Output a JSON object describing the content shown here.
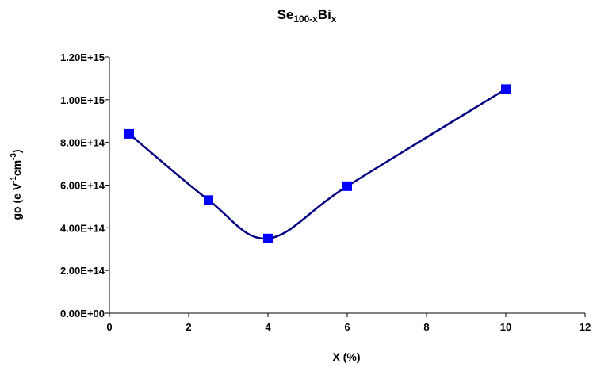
{
  "chart_data": {
    "type": "line",
    "title": [
      {
        "text": "Se"
      },
      {
        "text": "100-x",
        "shift": "sub"
      },
      {
        "text": "Bi"
      },
      {
        "text": "x",
        "shift": "sub"
      }
    ],
    "x_label": [
      {
        "text": "X (%)"
      }
    ],
    "y_label": [
      {
        "text": "go (e V"
      },
      {
        "text": "-1",
        "shift": "super"
      },
      {
        "text": "cm"
      },
      {
        "text": "-3",
        "shift": "super"
      },
      {
        "text": ")"
      }
    ],
    "x": [
      0.5,
      2.5,
      4,
      6,
      10
    ],
    "series": [
      {
        "color": "#000080",
        "marker_color": "#0000ff",
        "marker": "square",
        "smooth": true,
        "values": [
          840000000000000,
          530000000000000,
          350000000000000,
          595000000000000,
          1050000000000000
        ]
      }
    ],
    "xlim": [
      0,
      12
    ],
    "xticks": [
      0,
      2,
      4,
      6,
      8,
      10,
      12
    ],
    "ylim": [
      0,
      1200000000000000
    ],
    "yticks": [
      {
        "value": 0,
        "label": "0.00E+00"
      },
      {
        "value": 200000000000000,
        "label": "2.00E+14"
      },
      {
        "value": 400000000000000,
        "label": "4.00E+14"
      },
      {
        "value": 600000000000000,
        "label": "6.00E+14"
      },
      {
        "value": 800000000000000,
        "label": "8.00E+14"
      },
      {
        "value": 1000000000000000,
        "label": "1.00E+15"
      },
      {
        "value": 1200000000000000,
        "label": "1.20E+15"
      }
    ],
    "grid": false
  }
}
